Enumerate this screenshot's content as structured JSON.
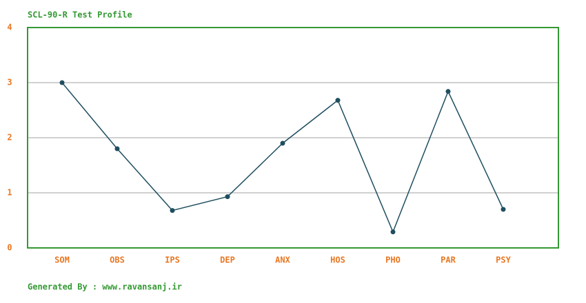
{
  "chart_data": {
    "type": "line",
    "title": "SCL-90-R Test Profile",
    "footer": "Generated By : www.ravansanj.ir",
    "categories": [
      "SOM",
      "OBS",
      "IPS",
      "DEP",
      "ANX",
      "HOS",
      "PHO",
      "PAR",
      "PSY"
    ],
    "series": [
      {
        "name": "SCL-90-R",
        "color": "#1f4e5f",
        "values": [
          3.0,
          1.8,
          0.68,
          0.93,
          1.9,
          2.68,
          0.29,
          2.84,
          0.7
        ]
      }
    ],
    "ylim": [
      0,
      4
    ],
    "yticks": [
      0,
      1,
      2,
      3,
      4
    ],
    "grid": true
  }
}
